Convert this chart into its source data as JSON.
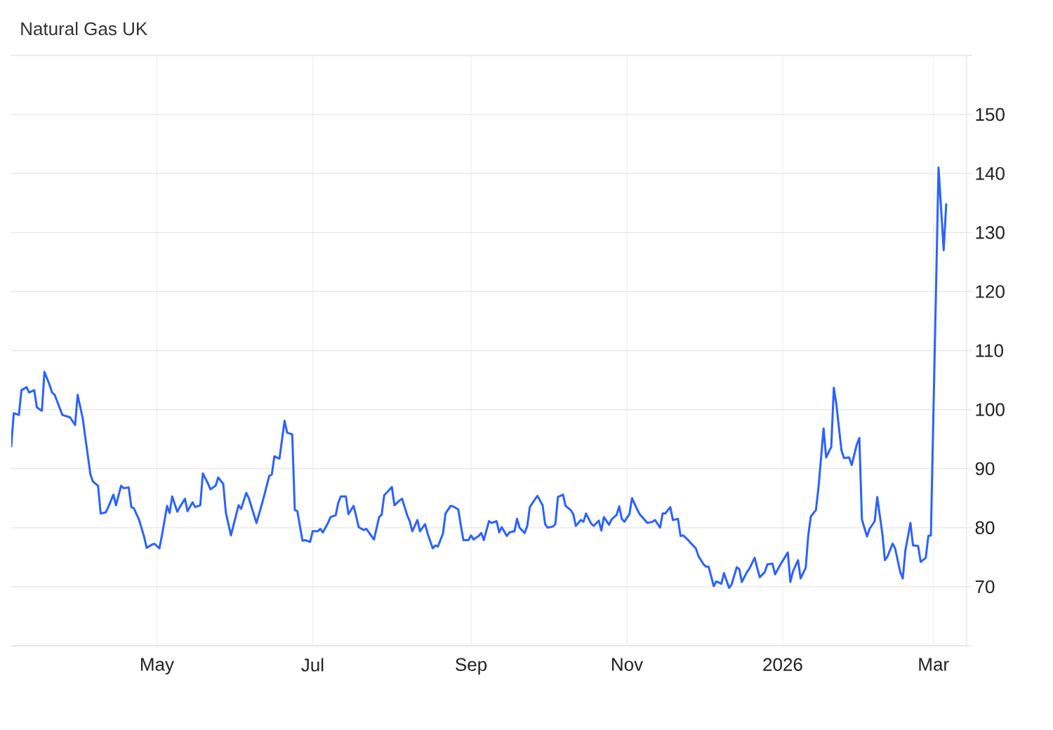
{
  "chart_data": {
    "type": "line",
    "title": "Natural Gas UK",
    "color": "#2962ff",
    "grid": true,
    "xlim": [
      "2025-03-05",
      "2026-03-14"
    ],
    "ylim": [
      60,
      160
    ],
    "xticks": [
      {
        "value": "2025-05-01",
        "label": "May"
      },
      {
        "value": "2025-07-01",
        "label": "Jul"
      },
      {
        "value": "2025-09-01",
        "label": "Sep"
      },
      {
        "value": "2025-11-01",
        "label": "Nov"
      },
      {
        "value": "2026-01-01",
        "label": "2026"
      },
      {
        "value": "2026-03-01",
        "label": "Mar"
      }
    ],
    "yticks": [
      {
        "value": 60,
        "label": null
      },
      70,
      80,
      90,
      100,
      110,
      120,
      130,
      140,
      150,
      {
        "value": 160,
        "label": null
      }
    ],
    "x": [
      "2025-03-05",
      "2025-03-06",
      "2025-03-08",
      "2025-03-09",
      "2025-03-11",
      "2025-03-12",
      "2025-03-14",
      "2025-03-15",
      "2025-03-17",
      "2025-03-18",
      "2025-03-20",
      "2025-03-21",
      "2025-03-22",
      "2025-03-25",
      "2025-03-28",
      "2025-03-30",
      "2025-03-31",
      "2025-04-02",
      "2025-04-03",
      "2025-04-05",
      "2025-04-06",
      "2025-04-08",
      "2025-04-09",
      "2025-04-11",
      "2025-04-12",
      "2025-04-14",
      "2025-04-15",
      "2025-04-17",
      "2025-04-18",
      "2025-04-20",
      "2025-04-21",
      "2025-04-22",
      "2025-04-24",
      "2025-04-26",
      "2025-04-27",
      "2025-04-29",
      "2025-04-30",
      "2025-05-02",
      "2025-05-03",
      "2025-05-05",
      "2025-05-06",
      "2025-05-07",
      "2025-05-09",
      "2025-05-10",
      "2025-05-12",
      "2025-05-13",
      "2025-05-15",
      "2025-05-16",
      "2025-05-18",
      "2025-05-19",
      "2025-05-21",
      "2025-05-22",
      "2025-05-24",
      "2025-05-25",
      "2025-05-27",
      "2025-05-28",
      "2025-05-30",
      "2025-06-02",
      "2025-06-03",
      "2025-06-05",
      "2025-06-06",
      "2025-06-09",
      "2025-06-11",
      "2025-06-12",
      "2025-06-14",
      "2025-06-15",
      "2025-06-16",
      "2025-06-18",
      "2025-06-20",
      "2025-06-21",
      "2025-06-23",
      "2025-06-24",
      "2025-06-25",
      "2025-06-27",
      "2025-06-28",
      "2025-06-30",
      "2025-07-01",
      "2025-07-03",
      "2025-07-04",
      "2025-07-05",
      "2025-07-07",
      "2025-07-08",
      "2025-07-10",
      "2025-07-11",
      "2025-07-12",
      "2025-07-14",
      "2025-07-15",
      "2025-07-17",
      "2025-07-18",
      "2025-07-19",
      "2025-07-21",
      "2025-07-22",
      "2025-07-24",
      "2025-07-25",
      "2025-07-27",
      "2025-07-28",
      "2025-07-29",
      "2025-07-31",
      "2025-08-01",
      "2025-08-02",
      "2025-08-04",
      "2025-08-05",
      "2025-08-07",
      "2025-08-08",
      "2025-08-09",
      "2025-08-11",
      "2025-08-12",
      "2025-08-14",
      "2025-08-15",
      "2025-08-17",
      "2025-08-18",
      "2025-08-19",
      "2025-08-21",
      "2025-08-22",
      "2025-08-24",
      "2025-08-25",
      "2025-08-27",
      "2025-08-28",
      "2025-08-29",
      "2025-08-31",
      "2025-09-01",
      "2025-09-02",
      "2025-09-04",
      "2025-09-05",
      "2025-09-06",
      "2025-09-08",
      "2025-09-09",
      "2025-09-11",
      "2025-09-12",
      "2025-09-13",
      "2025-09-15",
      "2025-09-16",
      "2025-09-18",
      "2025-09-19",
      "2025-09-20",
      "2025-09-22",
      "2025-09-23",
      "2025-09-24",
      "2025-09-26",
      "2025-09-27",
      "2025-09-29",
      "2025-09-30",
      "2025-10-01",
      "2025-10-03",
      "2025-10-04",
      "2025-10-05",
      "2025-10-07",
      "2025-10-08",
      "2025-10-10",
      "2025-10-11",
      "2025-10-12",
      "2025-10-14",
      "2025-10-15",
      "2025-10-16",
      "2025-10-18",
      "2025-10-19",
      "2025-10-21",
      "2025-10-22",
      "2025-10-23",
      "2025-10-25",
      "2025-10-26",
      "2025-10-28",
      "2025-10-29",
      "2025-10-30",
      "2025-10-31",
      "2025-11-02",
      "2025-11-03",
      "2025-11-05",
      "2025-11-06",
      "2025-11-08",
      "2025-11-09",
      "2025-11-11",
      "2025-11-12",
      "2025-11-14",
      "2025-11-15",
      "2025-11-16",
      "2025-11-18",
      "2025-11-19",
      "2025-11-21",
      "2025-11-22",
      "2025-11-23",
      "2025-11-25",
      "2025-11-26",
      "2025-11-28",
      "2025-11-29",
      "2025-12-01",
      "2025-12-02",
      "2025-12-03",
      "2025-12-05",
      "2025-12-06",
      "2025-12-08",
      "2025-12-09",
      "2025-12-11",
      "2025-12-12",
      "2025-12-14",
      "2025-12-15",
      "2025-12-16",
      "2025-12-18",
      "2025-12-19",
      "2025-12-21",
      "2025-12-22",
      "2025-12-23",
      "2025-12-25",
      "2025-12-26",
      "2025-12-28",
      "2025-12-29",
      "2025-12-31",
      "2026-01-01",
      "2026-01-03",
      "2026-01-04",
      "2026-01-05",
      "2026-01-07",
      "2026-01-08",
      "2026-01-10",
      "2026-01-11",
      "2026-01-12",
      "2026-01-14",
      "2026-01-15",
      "2026-01-17",
      "2026-01-18",
      "2026-01-20",
      "2026-01-21",
      "2026-01-22",
      "2026-01-24",
      "2026-01-25",
      "2026-01-27",
      "2026-01-28",
      "2026-01-30",
      "2026-01-31",
      "2026-02-01",
      "2026-02-03",
      "2026-02-04",
      "2026-02-06",
      "2026-02-07",
      "2026-02-09",
      "2026-02-10",
      "2026-02-11",
      "2026-02-13",
      "2026-02-14",
      "2026-02-16",
      "2026-02-17",
      "2026-02-18",
      "2026-02-20",
      "2026-02-21",
      "2026-02-23",
      "2026-02-24",
      "2026-02-26",
      "2026-02-27",
      "2026-02-28",
      "2026-03-03",
      "2026-03-05",
      "2026-03-06"
    ],
    "values": [
      93.8,
      99.4,
      99.1,
      103.3,
      103.8,
      102.9,
      103.3,
      100.4,
      99.8,
      106.4,
      104.2,
      102.9,
      102.5,
      99.1,
      98.7,
      97.4,
      102.5,
      98.5,
      95.3,
      89.0,
      87.8,
      87.1,
      82.4,
      82.6,
      83.5,
      85.6,
      83.8,
      87.1,
      86.7,
      86.8,
      83.5,
      83.3,
      81.4,
      78.5,
      76.6,
      77.1,
      77.3,
      76.5,
      78.7,
      83.7,
      82.5,
      85.3,
      82.7,
      83.5,
      84.9,
      82.8,
      84.3,
      83.5,
      83.8,
      89.2,
      87.5,
      86.5,
      87.1,
      88.5,
      87.4,
      82.6,
      78.7,
      83.8,
      83.2,
      85.9,
      85.0,
      80.8,
      83.8,
      85.4,
      88.8,
      89.0,
      92.1,
      91.7,
      98.1,
      96.1,
      95.8,
      83.0,
      82.8,
      77.8,
      77.9,
      77.6,
      79.4,
      79.4,
      79.8,
      79.2,
      80.8,
      81.8,
      82.1,
      84.2,
      85.3,
      85.3,
      82.3,
      83.7,
      82.0,
      80.1,
      79.6,
      79.8,
      78.6,
      78.0,
      81.8,
      82.2,
      85.5,
      86.4,
      86.9,
      83.8,
      84.6,
      84.9,
      82.1,
      81.1,
      79.4,
      81.3,
      79.4,
      80.6,
      79.0,
      76.5,
      77.0,
      76.8,
      79.0,
      82.4,
      83.7,
      83.6,
      83.1,
      80.4,
      77.9,
      77.9,
      78.7,
      78.0,
      78.6,
      79.1,
      77.9,
      81.1,
      80.8,
      81.1,
      79.2,
      80.1,
      78.6,
      79.2,
      79.4,
      81.5,
      80.0,
      79.1,
      80.3,
      83.5,
      84.8,
      85.4,
      83.8,
      80.6,
      80.0,
      80.2,
      80.6,
      85.2,
      85.6,
      83.7,
      83.0,
      82.3,
      80.3,
      81.3,
      81.0,
      82.4,
      80.7,
      80.3,
      81.2,
      79.5,
      81.8,
      80.5,
      81.4,
      82.2,
      83.6,
      81.5,
      81.0,
      82.3,
      85.0,
      83.1,
      82.3,
      81.3,
      80.8,
      81.0,
      81.3,
      80.0,
      82.4,
      82.4,
      83.5,
      81.3,
      81.5,
      78.6,
      78.7,
      77.9,
      77.4,
      76.5,
      75.2,
      73.8,
      73.4,
      73.4,
      70.1,
      70.9,
      70.5,
      72.3,
      69.8,
      70.4,
      73.3,
      73.0,
      70.8,
      72.5,
      73.1,
      74.9,
      73.2,
      71.6,
      72.5,
      73.8,
      73.9,
      72.1,
      73.7,
      74.4,
      75.8,
      70.8,
      72.6,
      74.5,
      71.4,
      73.2,
      78.7,
      81.9,
      83.0,
      86.8,
      96.8,
      91.9,
      93.7,
      103.7,
      100.9,
      93.1,
      91.8,
      91.9,
      90.6,
      94.1,
      95.2,
      81.4,
      78.5,
      79.8,
      81.1,
      85.2,
      79.0,
      74.5,
      75.1,
      77.3,
      76.5,
      72.5,
      71.4,
      76.1,
      80.8,
      77.0,
      76.9,
      74.2,
      74.9,
      78.6,
      78.7,
      141.0,
      127.0,
      134.8
    ]
  }
}
